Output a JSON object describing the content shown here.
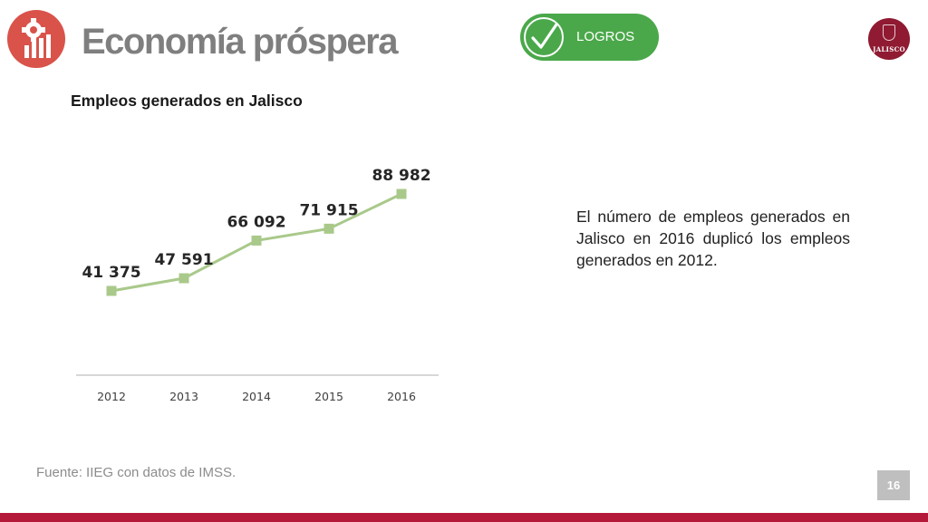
{
  "header": {
    "title": "Economía próspera",
    "badge_label": "LOGROS",
    "logo_text": "JALISCO"
  },
  "chart_title": "Empleos generados en Jalisco",
  "description": "El número de empleos generados en Jalisco en 2016 duplicó los empleos generados en 2012.",
  "source": "Fuente: IIEG con datos de IMSS.",
  "page_number": "16",
  "colors": {
    "accent_red": "#b5193a",
    "icon_red": "#d9534a",
    "badge_green": "#4aa84a",
    "line_green": "#a9c98a",
    "title_gray": "#7f7f7f"
  },
  "icons": {
    "title": "gear-chart-icon",
    "badge": "check-icon",
    "logo": "jalisco-crest-icon"
  },
  "chart_data": {
    "type": "line",
    "title": "Empleos generados en Jalisco",
    "categories": [
      "2012",
      "2013",
      "2014",
      "2015",
      "2016"
    ],
    "values": [
      41375,
      47591,
      66092,
      71915,
      88982
    ],
    "data_labels": [
      "41 375",
      "47 591",
      "66 092",
      "71 915",
      "88 982"
    ],
    "xlabel": "",
    "ylabel": "",
    "ylim": [
      0,
      95000
    ],
    "grid": false,
    "legend": "none"
  }
}
